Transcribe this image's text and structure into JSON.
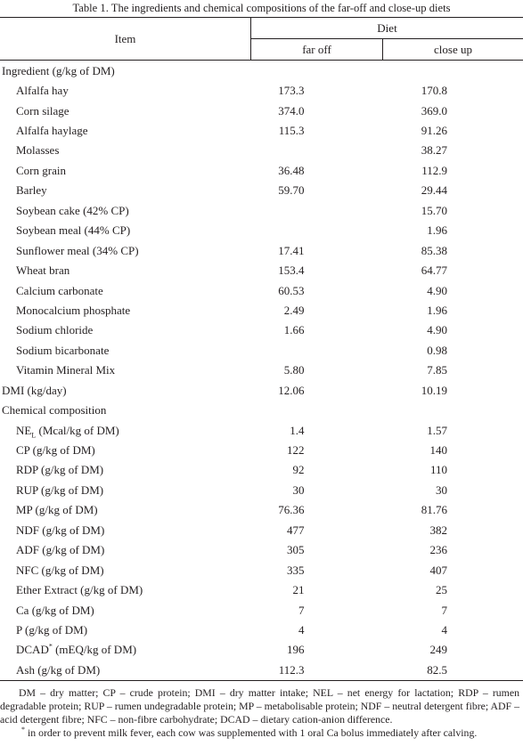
{
  "caption": "Table 1. The ingredients and chemical compositions of the far-off and close-up diets",
  "header": {
    "item": "Item",
    "diet": "Diet",
    "far_off": "far off",
    "close_up": "close up"
  },
  "rows": [
    {
      "type": "section",
      "label": "Ingredient (g/kg of DM)",
      "far": "",
      "close": ""
    },
    {
      "type": "item",
      "label": "Alfalfa hay",
      "far": "173.3",
      "close": "170.8"
    },
    {
      "type": "item",
      "label": "Corn silage",
      "far": "374.0",
      "close": "369.0"
    },
    {
      "type": "item",
      "label": "Alfalfa haylage",
      "far": "115.3",
      "close": "91.26"
    },
    {
      "type": "item",
      "label": "Molasses",
      "far": "",
      "close": "38.27"
    },
    {
      "type": "item",
      "label": "Corn grain",
      "far": "36.48",
      "close": "112.9"
    },
    {
      "type": "item",
      "label": "Barley",
      "far": "59.70",
      "close": "29.44"
    },
    {
      "type": "item",
      "label": "Soybean cake (42% CP)",
      "far": "",
      "close": "15.70"
    },
    {
      "type": "item",
      "label": "Soybean meal (44% CP)",
      "far": "",
      "close": "1.96"
    },
    {
      "type": "item",
      "label": "Sunflower meal (34% CP)",
      "far": "17.41",
      "close": "85.38"
    },
    {
      "type": "item",
      "label": "Wheat bran",
      "far": "153.4",
      "close": "64.77"
    },
    {
      "type": "item",
      "label": "Calcium carbonate",
      "far": "60.53",
      "close": "4.90"
    },
    {
      "type": "item",
      "label": "Monocalcium phosphate",
      "far": "2.49",
      "close": "1.96"
    },
    {
      "type": "item",
      "label": "Sodium chloride",
      "far": "1.66",
      "close": "4.90"
    },
    {
      "type": "item",
      "label": "Sodium bicarbonate",
      "far": "",
      "close": "0.98"
    },
    {
      "type": "item",
      "label": "Vitamin Mineral Mix",
      "far": "5.80",
      "close": "7.85"
    },
    {
      "type": "section",
      "label": "DMI (kg/day)",
      "far": "12.06",
      "close": "10.19"
    },
    {
      "type": "section",
      "label": "Chemical composition",
      "far": "",
      "close": ""
    },
    {
      "type": "item",
      "label": "NE",
      "sub": "L",
      "label_rest": " (Mcal/kg of DM)",
      "far": "1.4",
      "close": "1.57"
    },
    {
      "type": "item",
      "label": "CP (g/kg of DM)",
      "far": "122",
      "close": "140"
    },
    {
      "type": "item",
      "label": "RDP (g/kg of DM)",
      "far": "92",
      "close": "110"
    },
    {
      "type": "item",
      "label": "RUP (g/kg of DM)",
      "far": "30",
      "close": "30"
    },
    {
      "type": "item",
      "label": "MP (g/kg of DM)",
      "far": "76.36",
      "close": "81.76"
    },
    {
      "type": "item",
      "label": "NDF (g/kg of DM)",
      "far": "477",
      "close": "382"
    },
    {
      "type": "item",
      "label": "ADF (g/kg of DM)",
      "far": "305",
      "close": "236"
    },
    {
      "type": "item",
      "label": "NFC (g/kg of DM)",
      "far": "335",
      "close": "407"
    },
    {
      "type": "item",
      "label": "Ether Extract (g/kg of DM)",
      "far": "21",
      "close": "25"
    },
    {
      "type": "item",
      "label": "Ca (g/kg of DM)",
      "far": "7",
      "close": "7"
    },
    {
      "type": "item",
      "label": "P (g/kg of DM)",
      "far": "4",
      "close": "4"
    },
    {
      "type": "item",
      "label": "DCAD",
      "sup": "*",
      "label_rest": " (mEQ/kg of DM)",
      "far": "196",
      "close": "249"
    },
    {
      "type": "item",
      "label": "Ash (g/kg of DM)",
      "far": "112.3",
      "close": "82.5"
    }
  ],
  "footnotes": {
    "abbreviations": "DM – dry matter; CP – crude protein; DMI – dry matter intake; NEL – net energy for lactation; RDP – rumen degradable protein; RUP – rumen undegradable protein; MP – metabolisable protein; NDF – neutral detergent fibre; ADF – acid detergent fibre; NFC – non-fibre carbohydrate; DCAD – dietary cation-anion difference.",
    "mark": "*",
    "note": " in order to prevent milk fever, each cow was supplemented with 1 oral Ca bolus immediately after calving."
  }
}
